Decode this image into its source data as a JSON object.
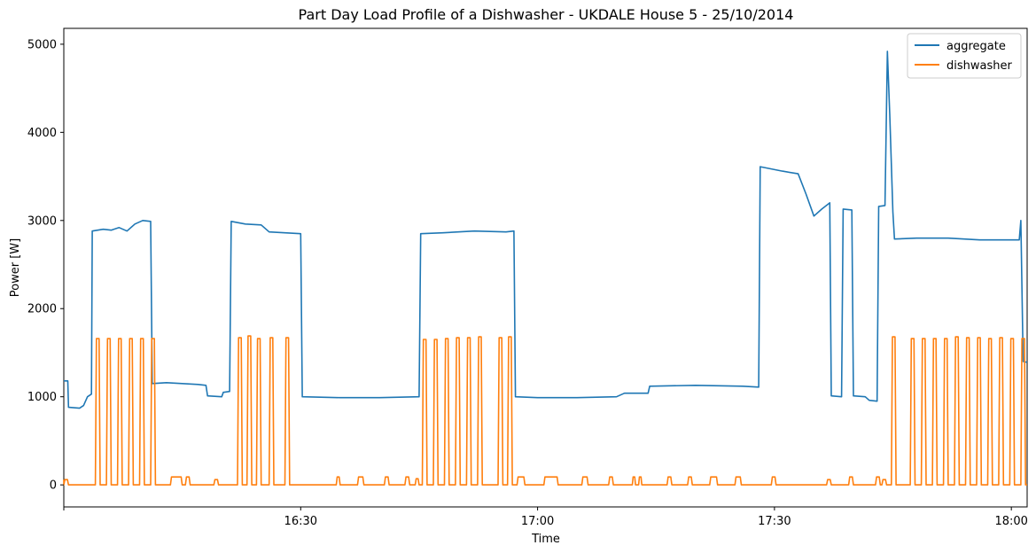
{
  "chart_data": {
    "type": "line",
    "title": "Part Day Load Profile of a Dishwasher - UKDALE House 5 - 25/10/2014",
    "xlabel": "Time",
    "ylabel": "Power [W]",
    "xlim": [
      "16:00",
      "18:02"
    ],
    "ylim": [
      -250,
      5180
    ],
    "x_ticks": [
      {
        "value": "16:30",
        "label": "16:30"
      },
      {
        "value": "17:00",
        "label": "17:00"
      },
      {
        "value": "17:30",
        "label": "17:30"
      },
      {
        "value": "18:00",
        "label": "18:00"
      }
    ],
    "y_ticks": [
      0,
      1000,
      2000,
      3000,
      4000,
      5000
    ],
    "grid": false,
    "legend": {
      "position": "top-right",
      "entries": [
        "aggregate",
        "dishwasher"
      ]
    },
    "colors": {
      "aggregate": "#1f77b4",
      "dishwasher": "#ff7f0e"
    },
    "series": [
      {
        "name": "aggregate",
        "color": "#1f77b4",
        "points": [
          [
            "16:00",
            1180
          ],
          [
            "16:00.5",
            1180
          ],
          [
            "16:00.6",
            880
          ],
          [
            "16:02",
            870
          ],
          [
            "16:02.5",
            900
          ],
          [
            "16:03",
            1000
          ],
          [
            "16:03.5",
            1030
          ],
          [
            "16:03.6",
            2880
          ],
          [
            "16:05",
            2900
          ],
          [
            "16:06",
            2890
          ],
          [
            "16:07",
            2920
          ],
          [
            "16:08",
            2880
          ],
          [
            "16:09",
            2960
          ],
          [
            "16:10",
            3000
          ],
          [
            "16:11",
            2990
          ],
          [
            "16:11.2",
            1150
          ],
          [
            "16:13",
            1160
          ],
          [
            "16:15",
            1150
          ],
          [
            "16:17",
            1140
          ],
          [
            "16:18",
            1130
          ],
          [
            "16:18.2",
            1010
          ],
          [
            "16:20",
            1000
          ],
          [
            "16:20.2",
            1050
          ],
          [
            "16:21",
            1060
          ],
          [
            "16:21.2",
            2990
          ],
          [
            "16:23",
            2960
          ],
          [
            "16:25",
            2950
          ],
          [
            "16:26",
            2870
          ],
          [
            "16:28",
            2860
          ],
          [
            "16:30",
            2850
          ],
          [
            "16:30.2",
            1000
          ],
          [
            "16:35",
            990
          ],
          [
            "16:40",
            990
          ],
          [
            "16:45",
            1000
          ],
          [
            "16:45.2",
            2850
          ],
          [
            "16:48",
            2860
          ],
          [
            "16:52",
            2880
          ],
          [
            "16:56",
            2870
          ],
          [
            "16:57",
            2880
          ],
          [
            "16:57.2",
            1000
          ],
          [
            "17:00",
            990
          ],
          [
            "17:05",
            990
          ],
          [
            "17:10",
            1000
          ],
          [
            "17:11",
            1040
          ],
          [
            "17:14",
            1040
          ],
          [
            "17:14.2",
            1120
          ],
          [
            "17:20",
            1130
          ],
          [
            "17:26",
            1120
          ],
          [
            "17:28",
            1110
          ],
          [
            "17:28.2",
            3610
          ],
          [
            "17:31",
            3560
          ],
          [
            "17:33",
            3530
          ],
          [
            "17:34",
            3300
          ],
          [
            "17:35",
            3050
          ],
          [
            "17:36",
            3130
          ],
          [
            "17:37",
            3200
          ],
          [
            "17:37.2",
            1010
          ],
          [
            "17:38.5",
            1000
          ],
          [
            "17:38.7",
            3130
          ],
          [
            "17:39.8",
            3120
          ],
          [
            "17:40",
            1010
          ],
          [
            "17:41.5",
            1000
          ],
          [
            "17:42",
            960
          ],
          [
            "17:43",
            950
          ],
          [
            "17:43.2",
            3160
          ],
          [
            "17:44",
            3170
          ],
          [
            "17:44.3",
            4920
          ],
          [
            "17:44.6",
            4200
          ],
          [
            "17:45",
            3100
          ],
          [
            "17:45.2",
            2790
          ],
          [
            "17:48",
            2800
          ],
          [
            "17:52",
            2800
          ],
          [
            "17:56",
            2780
          ],
          [
            "18:01",
            2780
          ],
          [
            "18:01.2",
            3000
          ],
          [
            "18:01.5",
            1400
          ],
          [
            "18:02",
            1390
          ]
        ]
      },
      {
        "name": "dishwasher",
        "color": "#ff7f0e",
        "pulses": [
          [
            "16:04.0",
            "16:04.6",
            1660
          ],
          [
            "16:05.4",
            "16:06.0",
            1660
          ],
          [
            "16:06.8",
            "16:07.4",
            1660
          ],
          [
            "16:08.2",
            "16:08.8",
            1660
          ],
          [
            "16:09.6",
            "16:10.2",
            1660
          ],
          [
            "16:11.0",
            "16:11.6",
            1660
          ],
          [
            "16:22.0",
            "16:22.6",
            1670
          ],
          [
            "16:23.2",
            "16:23.8",
            1690
          ],
          [
            "16:24.4",
            "16:25.0",
            1660
          ],
          [
            "16:26.0",
            "16:26.6",
            1670
          ],
          [
            "16:28.0",
            "16:28.6",
            1670
          ],
          [
            "16:45.4",
            "16:46.0",
            1650
          ],
          [
            "16:46.8",
            "16:47.4",
            1650
          ],
          [
            "16:48.2",
            "16:48.8",
            1660
          ],
          [
            "16:49.6",
            "16:50.2",
            1670
          ],
          [
            "16:51.0",
            "16:51.6",
            1670
          ],
          [
            "16:52.4",
            "16:53.0",
            1680
          ],
          [
            "16:55.0",
            "16:55.6",
            1670
          ],
          [
            "16:56.2",
            "16:56.8",
            1680
          ],
          [
            "17:44.8",
            "17:45.4",
            1680
          ],
          [
            "17:47.2",
            "17:47.8",
            1660
          ],
          [
            "17:48.6",
            "17:49.2",
            1660
          ],
          [
            "17:50.0",
            "17:50.6",
            1660
          ],
          [
            "17:51.4",
            "17:52.0",
            1660
          ],
          [
            "17:52.8",
            "17:53.4",
            1680
          ],
          [
            "17:54.2",
            "17:54.8",
            1670
          ],
          [
            "17:55.6",
            "17:56.2",
            1670
          ],
          [
            "17:57.0",
            "17:57.6",
            1660
          ],
          [
            "17:58.4",
            "17:59.0",
            1670
          ],
          [
            "17:59.8",
            "18:00.4",
            1660
          ],
          [
            "18:01.2",
            "18:01.8",
            1660
          ]
        ],
        "bumps": [
          [
            "16:00.0",
            "16:00.6",
            60
          ],
          [
            "16:13.5",
            "16:15.0",
            90
          ],
          [
            "16:15.4",
            "16:16.0",
            90
          ],
          [
            "16:19.0",
            "16:19.6",
            60
          ],
          [
            "16:34.5",
            "16:35.0",
            90
          ],
          [
            "16:37.2",
            "16:38.0",
            90
          ],
          [
            "16:40.6",
            "16:41.2",
            90
          ],
          [
            "16:43.2",
            "16:43.8",
            90
          ],
          [
            "16:44.5",
            "16:45.0",
            70
          ],
          [
            "16:57.4",
            "16:58.4",
            90
          ],
          [
            "17:00.8",
            "17:02.6",
            90
          ],
          [
            "17:05.6",
            "17:06.4",
            90
          ],
          [
            "17:09.0",
            "17:09.6",
            90
          ],
          [
            "17:12.0",
            "17:12.4",
            90
          ],
          [
            "17:12.8",
            "17:13.2",
            90
          ],
          [
            "17:16.4",
            "17:17.0",
            90
          ],
          [
            "17:19.0",
            "17:19.6",
            90
          ],
          [
            "17:21.8",
            "17:22.8",
            90
          ],
          [
            "17:25.0",
            "17:25.8",
            90
          ],
          [
            "17:29.6",
            "17:30.2",
            90
          ],
          [
            "17:36.6",
            "17:37.2",
            60
          ],
          [
            "17:39.4",
            "17:40.0",
            90
          ],
          [
            "17:42.8",
            "17:43.4",
            90
          ],
          [
            "17:43.6",
            "17:44.2",
            60
          ]
        ]
      }
    ]
  }
}
